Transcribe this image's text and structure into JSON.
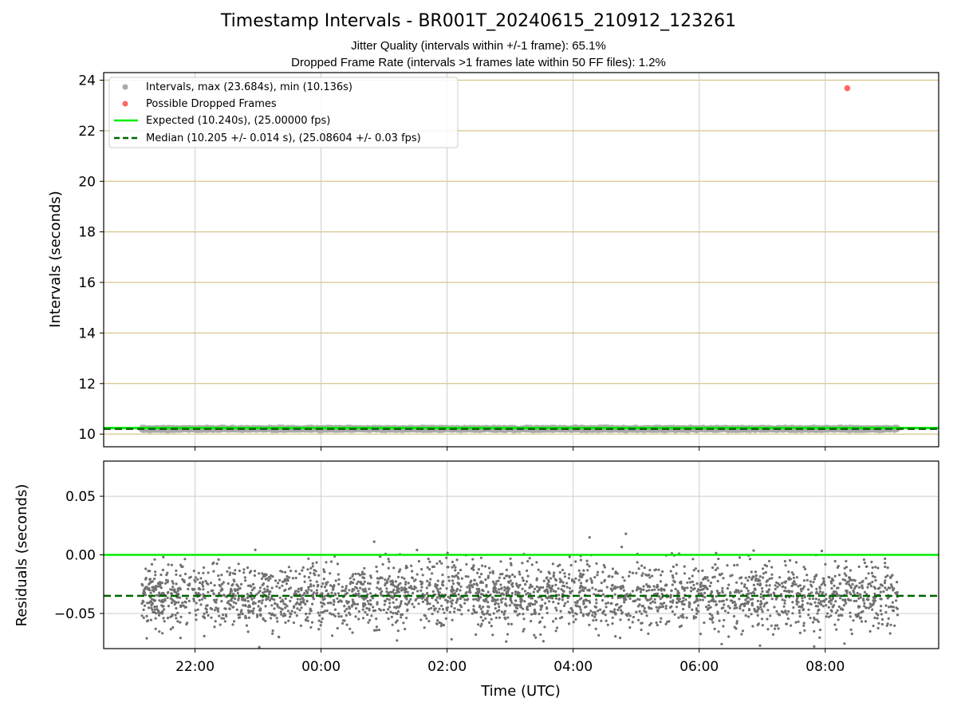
{
  "chart_data": [
    {
      "type": "scatter",
      "title": "Timestamp Intervals - BR001T_20240615_210912_123261",
      "subtitle_1": "Jitter Quality (intervals within +/-1 frame): 65.1%",
      "subtitle_2": "Dropped Frame Rate (intervals >1 frames late within 50 FF files): 1.2%",
      "ylabel": "Intervals (seconds)",
      "ylim": [
        9.5,
        24.3
      ],
      "yticks": [
        "10",
        "12",
        "14",
        "16",
        "18",
        "20",
        "22",
        "24"
      ],
      "y_tick_values": [
        10,
        12,
        14,
        16,
        18,
        20,
        22,
        24
      ],
      "x_range_hours": [
        20.55,
        33.8
      ],
      "x_start_hour": 21.15,
      "x_end_hour": 33.15,
      "grid": "on",
      "legend_placement": "top-left",
      "series": [
        {
          "name": "Intervals, max (23.684s), min (10.136s)",
          "color": "#a9a9a9",
          "kind": "points",
          "center": 10.205,
          "spread": 0.014
        },
        {
          "name": "Possible Dropped Frames",
          "color": "#ff6666",
          "kind": "points",
          "points": [
            {
              "x_hour": 32.35,
              "y": 23.684
            }
          ]
        },
        {
          "name": "Expected (10.240s), (25.00000 fps)",
          "color": "#00ee00",
          "kind": "hline",
          "y": 10.24
        },
        {
          "name": "Median (10.205 +/- 0.014 s), (25.08604 +/- 0.03 fps)",
          "color": "#006400",
          "kind": "dashed-hline",
          "y": 10.205
        }
      ]
    },
    {
      "type": "scatter",
      "xlabel": "Time (UTC)",
      "ylabel": "Residuals (seconds)",
      "ylim": [
        -0.08,
        0.08
      ],
      "yticks": [
        "0.05",
        "0.00",
        "−0.05"
      ],
      "y_tick_values": [
        0.05,
        0.0,
        -0.05
      ],
      "xticks": [
        "22:00",
        "00:00",
        "02:00",
        "04:00",
        "06:00",
        "08:00"
      ],
      "x_tick_hours": [
        22,
        24,
        26,
        28,
        30,
        32
      ],
      "grid": "on",
      "series": [
        {
          "name": "Residuals",
          "color": "#707070",
          "kind": "points",
          "center": -0.035,
          "spread": 0.014
        },
        {
          "name": "Expected",
          "color": "#00ee00",
          "kind": "hline",
          "y": 0.0
        },
        {
          "name": "Median",
          "color": "#006400",
          "kind": "dashed-hline",
          "y": -0.035
        }
      ]
    }
  ]
}
